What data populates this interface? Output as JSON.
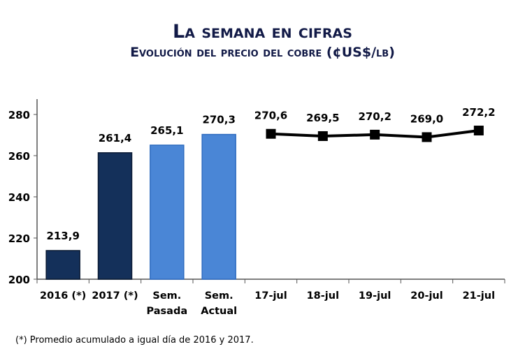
{
  "chart_data": {
    "type": "bar",
    "title": "La semana en cifras",
    "subtitle": "Evolución del precio del cobre  (¢US$/lb)",
    "categories": [
      "2016 (*)",
      "2017 (*)",
      "Sem.\nPasada",
      "Sem.\nActual",
      "17-jul",
      "18-jul",
      "19-jul",
      "20-jul",
      "21-jul"
    ],
    "bars": [
      {
        "category": "2016 (*)",
        "value": 213.9,
        "label": "213,9",
        "color": "#14305a"
      },
      {
        "category": "2017 (*)",
        "value": 261.4,
        "label": "261,4",
        "color": "#14305a"
      },
      {
        "category": "Sem.\nPasada",
        "value": 265.1,
        "label": "265,1",
        "color": "#4a86d6"
      },
      {
        "category": "Sem.\nActual",
        "value": 270.3,
        "label": "270,3",
        "color": "#4a86d6"
      }
    ],
    "line": {
      "categories": [
        "17-jul",
        "18-jul",
        "19-jul",
        "20-jul",
        "21-jul"
      ],
      "values": [
        270.6,
        269.5,
        270.2,
        269.0,
        272.2
      ],
      "labels": [
        "270,6",
        "269,5",
        "270,2",
        "269,0",
        "272,2"
      ],
      "color": "#000000",
      "marker": "square"
    },
    "ylim": [
      200,
      290
    ],
    "yticks": [
      "200",
      "220",
      "240",
      "260",
      "280"
    ],
    "grid": false
  },
  "footnote": "(*) Promedio acumulado a igual día de 2016 y 2017."
}
